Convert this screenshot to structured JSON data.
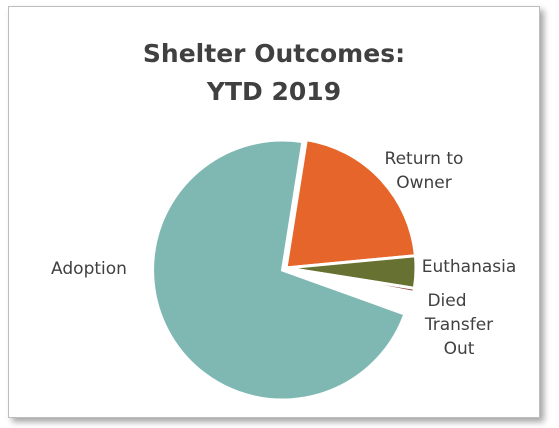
{
  "chart_data": {
    "type": "pie",
    "title": "Shelter Outcomes: YTD 2019",
    "categories": [
      "Return to Owner",
      "Euthanasia",
      "Died",
      "Transfer Out",
      "Adoption"
    ],
    "values": [
      21,
      4,
      0.5,
      2.5,
      72
    ],
    "colors": [
      "#e5652b",
      "#677132",
      "#8b2323",
      "#ffffff",
      "#7fb8b3"
    ]
  }
}
